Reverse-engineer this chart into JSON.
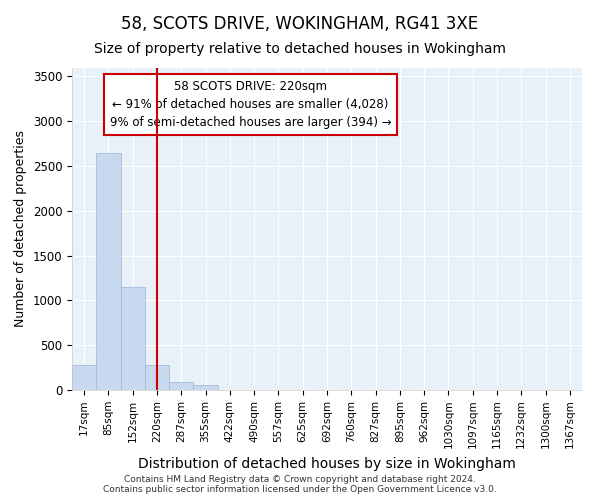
{
  "title": "58, SCOTS DRIVE, WOKINGHAM, RG41 3XE",
  "subtitle": "Size of property relative to detached houses in Wokingham",
  "xlabel": "Distribution of detached houses by size in Wokingham",
  "ylabel": "Number of detached properties",
  "bar_color": "#c8d8ee",
  "bar_edge_color": "#9ab4d8",
  "categories": [
    "17sqm",
    "85sqm",
    "152sqm",
    "220sqm",
    "287sqm",
    "355sqm",
    "422sqm",
    "490sqm",
    "557sqm",
    "625sqm",
    "692sqm",
    "760sqm",
    "827sqm",
    "895sqm",
    "962sqm",
    "1030sqm",
    "1097sqm",
    "1165sqm",
    "1232sqm",
    "1300sqm",
    "1367sqm"
  ],
  "values": [
    280,
    2650,
    1150,
    280,
    90,
    55,
    0,
    0,
    0,
    0,
    0,
    0,
    0,
    0,
    0,
    0,
    0,
    0,
    0,
    0,
    0
  ],
  "red_line_index": 3,
  "annotation_line1": "58 SCOTS DRIVE: 220sqm",
  "annotation_line2": "← 91% of detached houses are smaller (4,028)",
  "annotation_line3": "9% of semi-detached houses are larger (394) →",
  "annotation_box_color": "#ffffff",
  "annotation_border_color": "#cc0000",
  "red_line_color": "#cc0000",
  "ylim": [
    0,
    3600
  ],
  "yticks": [
    0,
    500,
    1000,
    1500,
    2000,
    2500,
    3000,
    3500
  ],
  "footer_line1": "Contains HM Land Registry data © Crown copyright and database right 2024.",
  "footer_line2": "Contains public sector information licensed under the Open Government Licence v3.0.",
  "bg_color": "#ffffff",
  "plot_bg_color": "#e8f0f8",
  "grid_color": "#ffffff",
  "title_fontsize": 12,
  "subtitle_fontsize": 10,
  "ylabel_fontsize": 9,
  "xlabel_fontsize": 10
}
